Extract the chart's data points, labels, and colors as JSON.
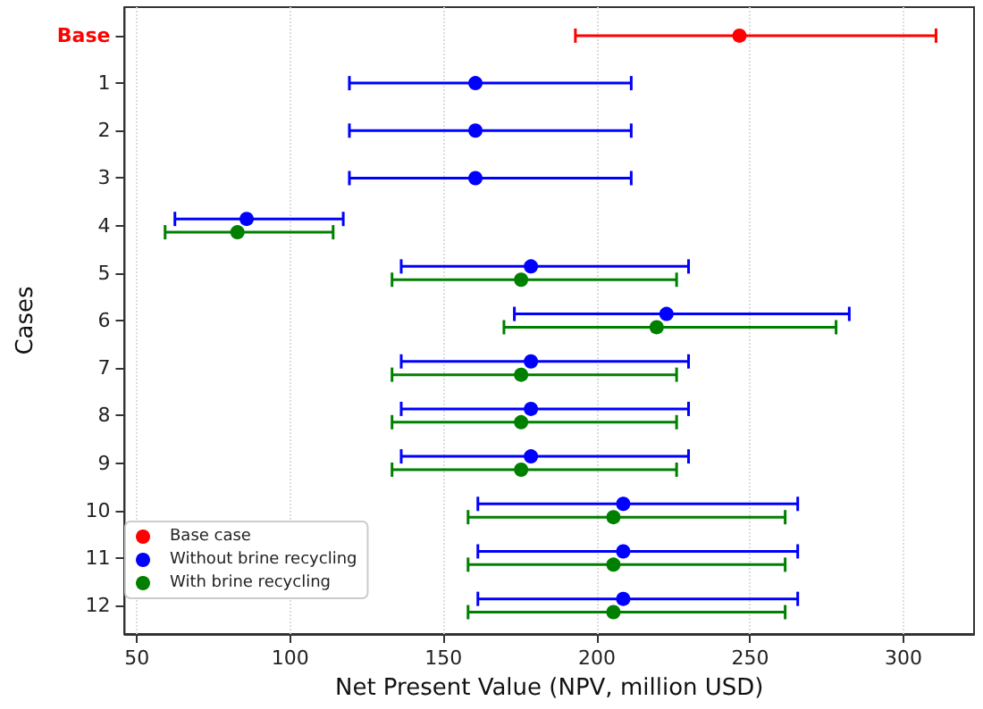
{
  "chart_data": {
    "type": "scatter",
    "orientation": "horizontal",
    "xlabel": "Net Present Value (NPV, million USD)",
    "ylabel": "Cases",
    "categories": [
      "Base",
      "1",
      "2",
      "3",
      "4",
      "5",
      "6",
      "7",
      "8",
      "9",
      "10",
      "11",
      "12"
    ],
    "xlim": [
      46,
      323
    ],
    "xticks": [
      50,
      100,
      150,
      200,
      250,
      300
    ],
    "grid": "x",
    "legend": "bottom left",
    "marker": "circle",
    "series": [
      {
        "name": "Base case",
        "color": "#ff0000",
        "values": [
          246.5,
          null,
          null,
          null,
          null,
          null,
          null,
          null,
          null,
          null,
          null,
          null,
          null
        ],
        "errors": [
          [
            193,
            310.6
          ],
          null,
          null,
          null,
          null,
          null,
          null,
          null,
          null,
          null,
          null,
          null,
          null
        ]
      },
      {
        "name": "Without brine recycling",
        "color": "#0000ff",
        "values": [
          null,
          160.4,
          160.4,
          160.4,
          85.8,
          178.5,
          222.7,
          178.5,
          178.5,
          178.5,
          208.6,
          208.6,
          208.6
        ],
        "errors": [
          null,
          [
            119.3,
            211.2
          ],
          [
            119.3,
            211.2
          ],
          [
            119.3,
            211.2
          ],
          [
            62.4,
            117.3
          ],
          [
            136.2,
            229.9
          ],
          [
            173.1,
            282.3
          ],
          [
            136.2,
            229.9
          ],
          [
            136.2,
            229.9
          ],
          [
            136.2,
            229.9
          ],
          [
            161.2,
            265.5
          ],
          [
            161.2,
            265.5
          ],
          [
            161.2,
            265.5
          ]
        ]
      },
      {
        "name": "With brine recycling",
        "color": "#008000",
        "values": [
          null,
          null,
          null,
          null,
          82.8,
          175.3,
          219.5,
          175.3,
          175.3,
          175.3,
          205.4,
          205.4,
          205.4
        ],
        "errors": [
          null,
          null,
          null,
          null,
          [
            59.2,
            114
          ],
          [
            133.2,
            226
          ],
          [
            169.7,
            278
          ],
          [
            133.2,
            226
          ],
          [
            133.2,
            226
          ],
          [
            133.2,
            226
          ],
          [
            158,
            261.4
          ],
          [
            158,
            261.4
          ],
          [
            158,
            261.4
          ]
        ]
      }
    ]
  }
}
